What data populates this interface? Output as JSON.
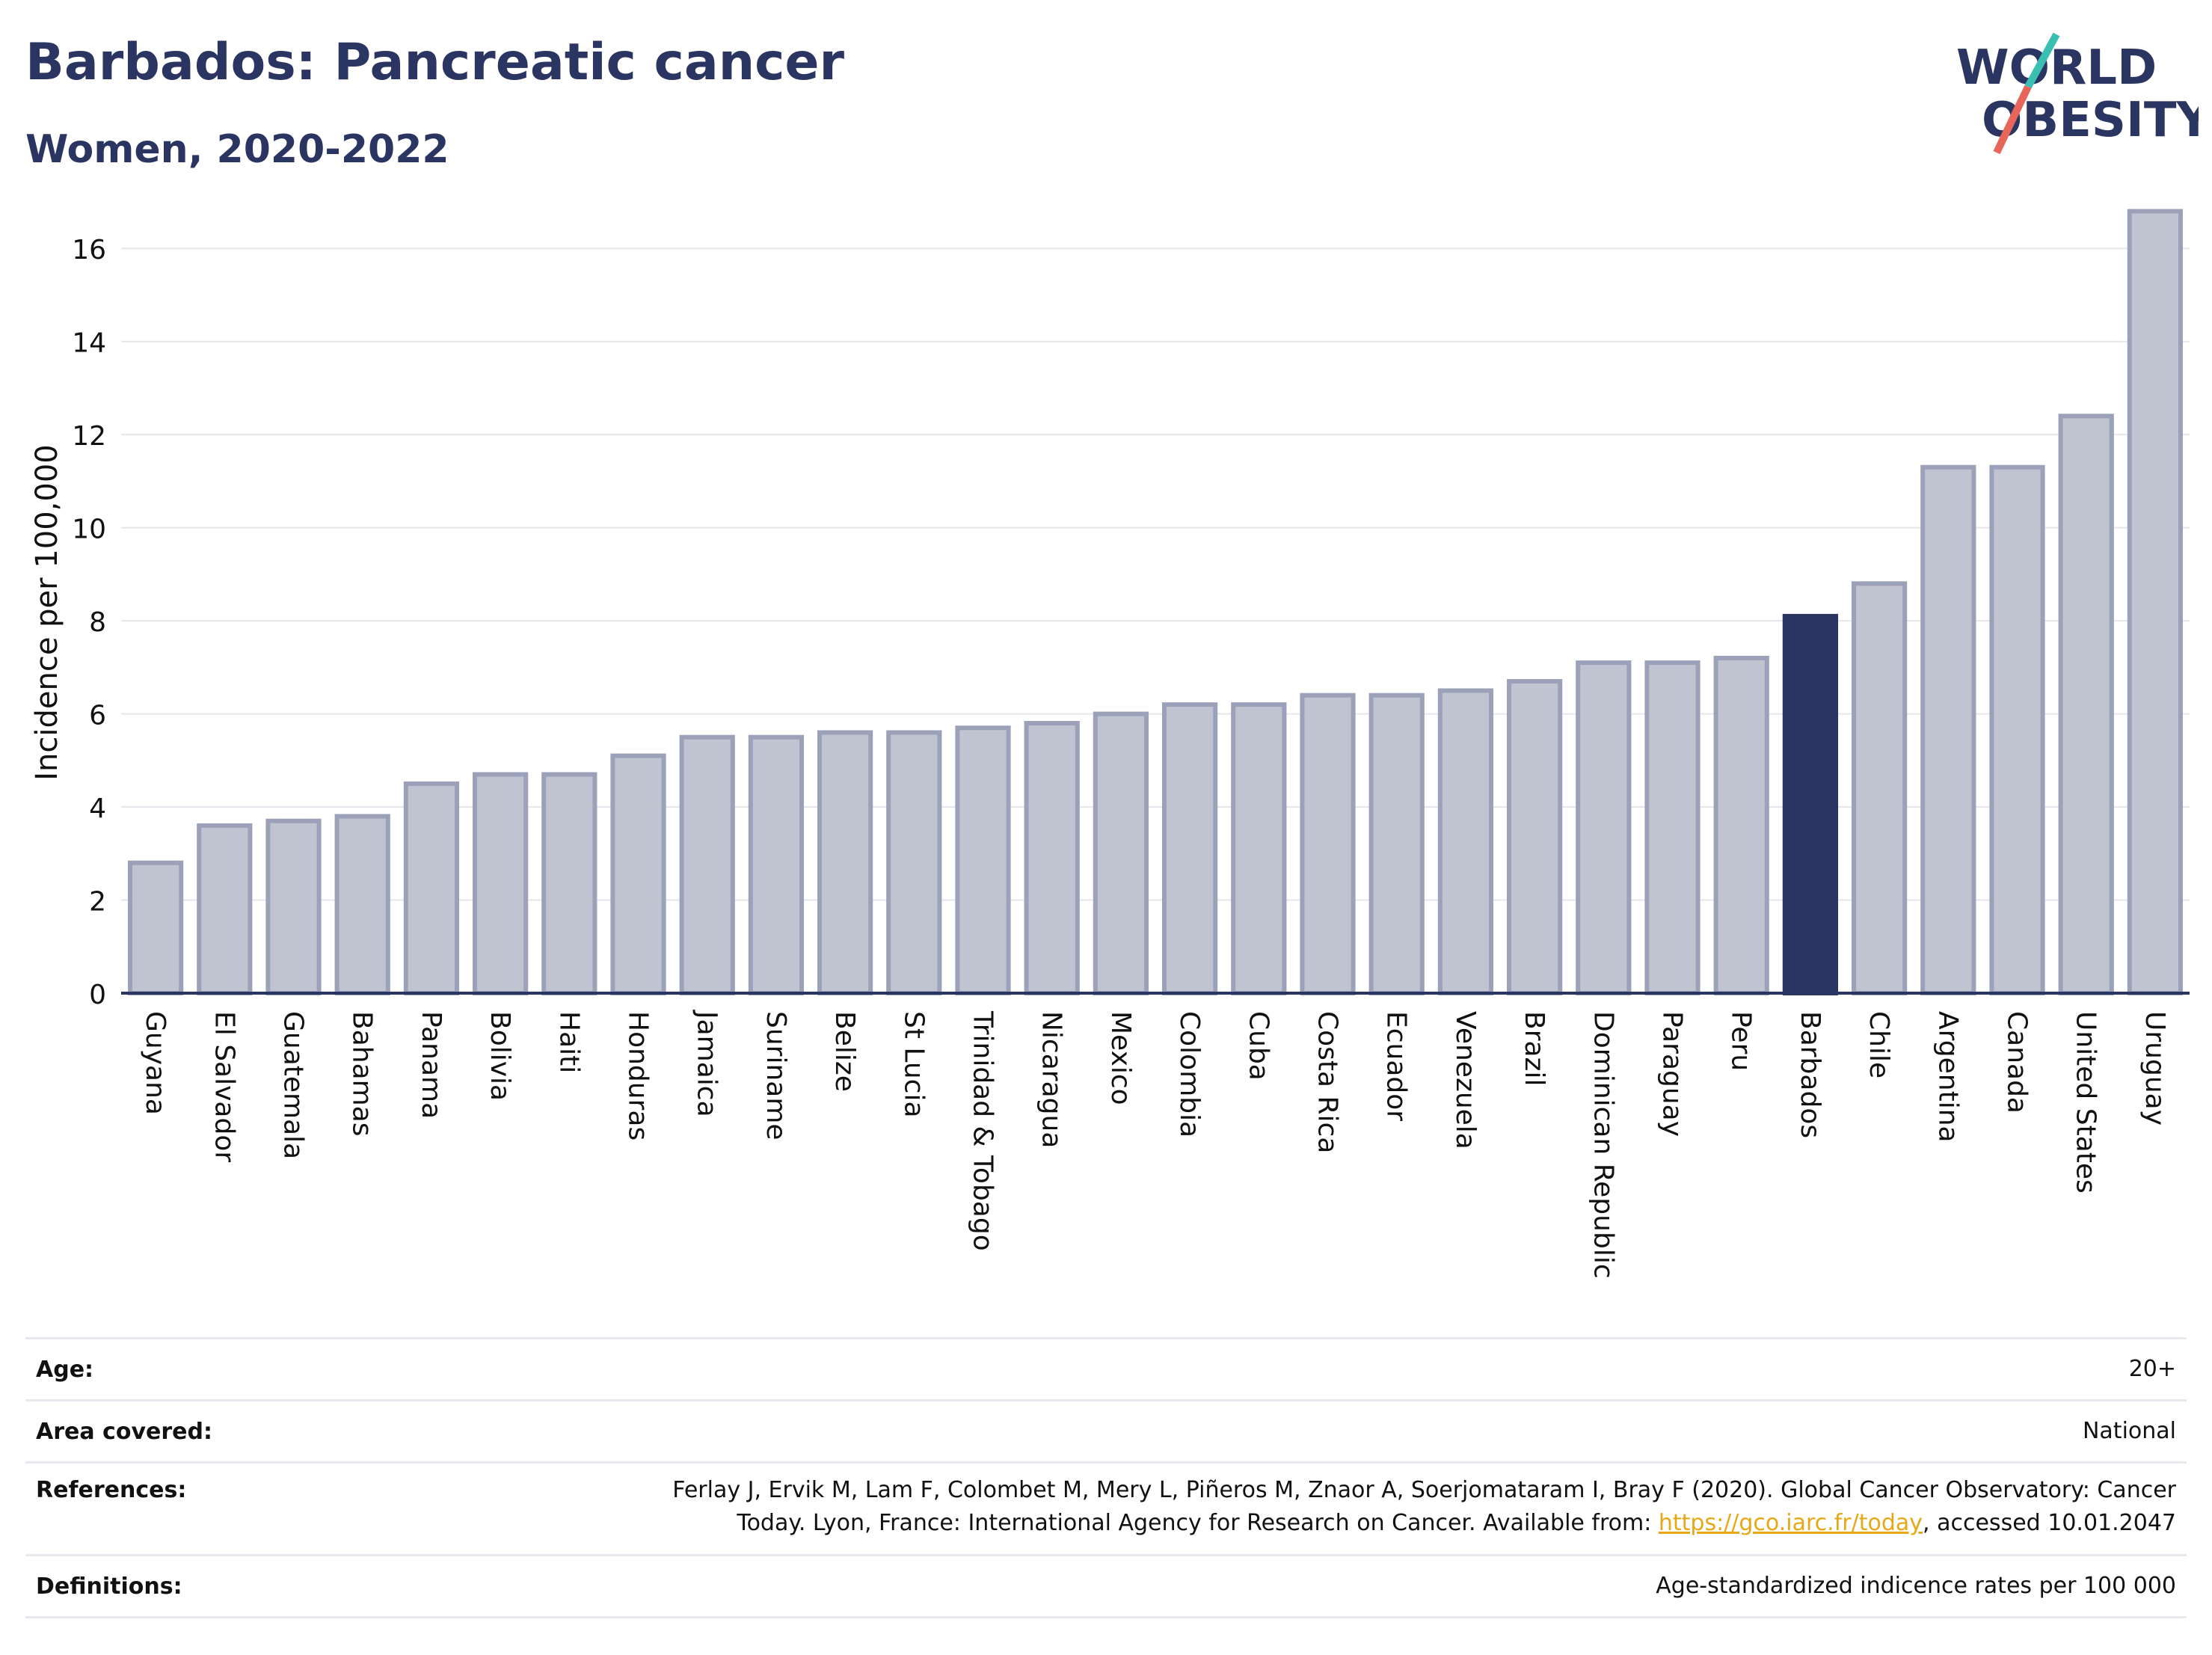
{
  "header": {
    "title": "Barbados: Pancreatic cancer",
    "subtitle": "Women, 2020-2022"
  },
  "logo": {
    "line1": "WORLD",
    "line2": "OBESITY",
    "accent_teal": "#3bbfb2",
    "accent_red": "#e8655a"
  },
  "chart_data": {
    "type": "bar",
    "ylabel": "Incidence per 100,000",
    "xlabel": "",
    "ylim": [
      0,
      17
    ],
    "yticks": [
      0,
      2,
      4,
      6,
      8,
      10,
      12,
      14,
      16
    ],
    "highlight": "Barbados",
    "colors": {
      "bar": "#c0c3d0",
      "bar_edge": "#9ba1b9",
      "highlight": "#2b3561"
    },
    "categories": [
      "Guyana",
      "El Salvador",
      "Guatemala",
      "Bahamas",
      "Panama",
      "Bolivia",
      "Haiti",
      "Honduras",
      "Jamaica",
      "Suriname",
      "Belize",
      "St Lucia",
      "Trinidad & Tobago",
      "Nicaragua",
      "Mexico",
      "Colombia",
      "Cuba",
      "Costa Rica",
      "Ecuador",
      "Venezuela",
      "Brazil",
      "Dominican Republic",
      "Paraguay",
      "Peru",
      "Barbados",
      "Chile",
      "Argentina",
      "Canada",
      "United States",
      "Uruguay"
    ],
    "values": [
      2.8,
      3.6,
      3.7,
      3.8,
      4.5,
      4.7,
      4.7,
      5.1,
      5.5,
      5.5,
      5.6,
      5.6,
      5.7,
      5.8,
      6.0,
      6.2,
      6.2,
      6.4,
      6.4,
      6.5,
      6.7,
      7.1,
      7.1,
      7.2,
      8.1,
      8.8,
      11.3,
      11.3,
      12.4,
      16.8
    ]
  },
  "meta": {
    "age_label": "Age:",
    "age_value": "20+",
    "area_label": "Area covered:",
    "area_value": "National",
    "references_label": "References:",
    "references_line1": "Ferlay J, Ervik M, Lam F, Colombet M, Mery L, Piñeros M, Znaor A, Soerjomataram I, Bray F (2020). Global Cancer Observatory: Cancer",
    "references_line2_pre": "Today. Lyon, France: International Agency for Research on Cancer. Available from: ",
    "references_link": "https://gco.iarc.fr/today",
    "references_line2_post": ", accessed 10.01.2047",
    "definitions_label": "Definitions:",
    "definitions_value": "Age-standardized indicence rates per 100 000"
  }
}
